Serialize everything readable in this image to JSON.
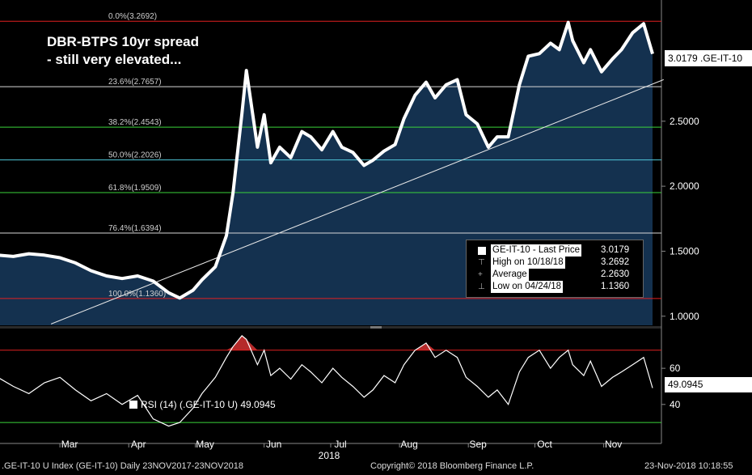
{
  "chart_data": {
    "type": "line",
    "title": "DBR-BTPS 10yr spread",
    "subtitle": "- still very elevated...",
    "price_panel": {
      "ylim": [
        0.93,
        3.42
      ],
      "y_ticks": [
        1.0,
        1.5,
        2.0,
        2.5
      ],
      "y_tick_labels": [
        "1.0000",
        "1.5000",
        "2.0000",
        "2.5000"
      ],
      "series": [
        {
          "name": "GE-IT-10 - Last Price",
          "x": [
            "2017-11-23",
            "2017-11-30",
            "2017-12-07",
            "2017-12-14",
            "2017-12-21",
            "2017-12-28",
            "2018-01-04",
            "2018-01-11",
            "2018-01-18",
            "2018-01-25",
            "2018-02-01",
            "2018-02-08",
            "2018-02-15",
            "2018-02-22",
            "2018-03-01",
            "2018-03-08",
            "2018-03-15",
            "2018-03-22",
            "2018-03-29",
            "2018-04-05",
            "2018-04-12",
            "2018-04-19",
            "2018-04-24",
            "2018-04-30",
            "2018-05-04",
            "2018-05-10",
            "2018-05-15",
            "2018-05-18",
            "2018-05-22",
            "2018-05-24",
            "2018-05-29",
            "2018-06-01",
            "2018-06-04",
            "2018-06-08",
            "2018-06-13",
            "2018-06-18",
            "2018-06-22",
            "2018-06-27",
            "2018-07-02",
            "2018-07-06",
            "2018-07-11",
            "2018-07-16",
            "2018-07-20",
            "2018-07-25",
            "2018-07-30",
            "2018-08-03",
            "2018-08-08",
            "2018-08-13",
            "2018-08-17",
            "2018-08-22",
            "2018-08-27",
            "2018-08-31",
            "2018-09-05",
            "2018-09-10",
            "2018-09-14",
            "2018-09-19",
            "2018-09-24",
            "2018-09-28",
            "2018-10-03",
            "2018-10-08",
            "2018-10-12",
            "2018-10-16",
            "2018-10-18",
            "2018-10-23",
            "2018-10-26",
            "2018-10-31",
            "2018-11-05",
            "2018-11-09",
            "2018-11-14",
            "2018-11-19",
            "2018-11-23"
          ],
          "values": [
            1.48,
            1.47,
            1.45,
            1.46,
            1.46,
            1.47,
            1.45,
            1.44,
            1.46,
            1.45,
            1.47,
            1.46,
            1.48,
            1.47,
            1.45,
            1.41,
            1.35,
            1.31,
            1.29,
            1.31,
            1.27,
            1.18,
            1.14,
            1.2,
            1.28,
            1.38,
            1.62,
            1.95,
            2.56,
            2.89,
            2.3,
            2.55,
            2.18,
            2.3,
            2.22,
            2.42,
            2.38,
            2.28,
            2.42,
            2.3,
            2.26,
            2.16,
            2.2,
            2.27,
            2.32,
            2.52,
            2.7,
            2.8,
            2.68,
            2.78,
            2.82,
            2.55,
            2.48,
            2.3,
            2.38,
            2.38,
            2.78,
            3.0,
            3.02,
            3.1,
            3.05,
            3.26,
            3.12,
            2.95,
            3.05,
            2.88,
            2.98,
            3.05,
            3.18,
            3.25,
            3.0179
          ]
        }
      ],
      "fibonacci": [
        {
          "label": "0.0%(3.2692)",
          "value": 3.2692,
          "color": "#e02020"
        },
        {
          "label": "23.6%(2.7657)",
          "value": 2.7657,
          "color": "#d8d8d8"
        },
        {
          "label": "38.2%(2.4543)",
          "value": 2.4543,
          "color": "#3ad23a"
        },
        {
          "label": "50.0%(2.2026)",
          "value": 2.2026,
          "color": "#4fc6d8"
        },
        {
          "label": "61.8%(1.9509)",
          "value": 1.9509,
          "color": "#3ad23a"
        },
        {
          "label": "76.4%(1.6394)",
          "value": 1.6394,
          "color": "#d8d8d8"
        },
        {
          "label": "100.0%(1.1360)",
          "value": 1.136,
          "color": "#e02020"
        }
      ],
      "trendline": {
        "from": {
          "x": "2018-02-25",
          "y": 0.94
        },
        "to": {
          "x": "2018-11-28",
          "y": 2.82
        }
      },
      "last_value_label": "3.0179 .GE-IT-10",
      "legend": [
        {
          "label": "GE-IT-10 - Last Price",
          "value": "3.0179"
        },
        {
          "label": "High on 10/18/18",
          "value": "3.2692"
        },
        {
          "label": "Average",
          "value": "2.2630"
        },
        {
          "label": "Low on 04/24/18",
          "value": "1.1360"
        }
      ]
    },
    "rsi_panel": {
      "ylim": [
        22,
        82
      ],
      "y_ticks": [
        40,
        60
      ],
      "overbought": 70,
      "oversold": 30,
      "series": [
        {
          "name": "RSI (14) (.GE-IT-10 U)",
          "x": [
            "2017-11-23",
            "2017-11-30",
            "2017-12-07",
            "2017-12-14",
            "2017-12-21",
            "2017-12-28",
            "2018-01-04",
            "2018-01-11",
            "2018-01-18",
            "2018-01-25",
            "2018-02-01",
            "2018-02-08",
            "2018-02-15",
            "2018-02-22",
            "2018-03-01",
            "2018-03-08",
            "2018-03-15",
            "2018-03-22",
            "2018-03-29",
            "2018-04-05",
            "2018-04-12",
            "2018-04-19",
            "2018-04-24",
            "2018-04-30",
            "2018-05-04",
            "2018-05-10",
            "2018-05-15",
            "2018-05-18",
            "2018-05-22",
            "2018-05-24",
            "2018-05-29",
            "2018-06-01",
            "2018-06-04",
            "2018-06-08",
            "2018-06-13",
            "2018-06-18",
            "2018-06-22",
            "2018-06-27",
            "2018-07-02",
            "2018-07-06",
            "2018-07-11",
            "2018-07-16",
            "2018-07-20",
            "2018-07-25",
            "2018-07-30",
            "2018-08-03",
            "2018-08-08",
            "2018-08-13",
            "2018-08-17",
            "2018-08-22",
            "2018-08-27",
            "2018-08-31",
            "2018-09-05",
            "2018-09-10",
            "2018-09-14",
            "2018-09-19",
            "2018-09-24",
            "2018-09-28",
            "2018-10-03",
            "2018-10-08",
            "2018-10-12",
            "2018-10-16",
            "2018-10-18",
            "2018-10-23",
            "2018-10-26",
            "2018-10-31",
            "2018-11-05",
            "2018-11-09",
            "2018-11-14",
            "2018-11-19",
            "2018-11-23"
          ],
          "values": [
            58,
            62,
            52,
            55,
            60,
            54,
            50,
            53,
            47,
            52,
            55,
            50,
            46,
            52,
            55,
            48,
            42,
            46,
            40,
            45,
            32,
            28,
            30,
            38,
            46,
            55,
            66,
            72,
            78,
            76,
            62,
            70,
            56,
            60,
            54,
            62,
            58,
            52,
            60,
            55,
            50,
            44,
            48,
            56,
            52,
            62,
            70,
            74,
            66,
            70,
            66,
            55,
            50,
            44,
            48,
            40,
            58,
            66,
            70,
            60,
            66,
            70,
            62,
            56,
            64,
            50,
            55,
            58,
            62,
            66,
            49.0945
          ]
        }
      ],
      "last_value_label": "49.0945",
      "legend_label": "RSI (14) (.GE-IT-10 U) 49.0945"
    },
    "x_axis": {
      "months": [
        {
          "label": "Mar",
          "date": "2018-03-01"
        },
        {
          "label": "Apr",
          "date": "2018-04-01"
        },
        {
          "label": "May",
          "date": "2018-05-01"
        },
        {
          "label": "Jun",
          "date": "2018-06-01"
        },
        {
          "label": "Jul",
          "date": "2018-07-01"
        },
        {
          "label": "Aug",
          "date": "2018-08-01"
        },
        {
          "label": "Sep",
          "date": "2018-09-01"
        },
        {
          "label": "Oct",
          "date": "2018-10-01"
        },
        {
          "label": "Nov",
          "date": "2018-11-01"
        }
      ],
      "year_label": "2018"
    }
  },
  "footer": {
    "left": ".GE-IT-10 U Index (GE-IT-10)  Daily 23NOV2017-23NOV2018",
    "center": "Copyright© 2018 Bloomberg Finance L.P.",
    "right": "23-Nov-2018 10:18:55"
  },
  "colors": {
    "background": "#000000",
    "area_fill": "#14314f",
    "price_line": "#ffffff",
    "rsi_line": "#ffffff",
    "overbought_fill": "#b52a2a"
  }
}
